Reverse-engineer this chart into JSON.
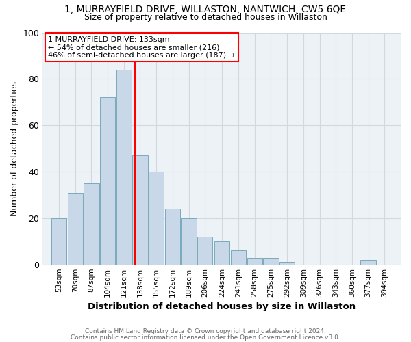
{
  "title": "1, MURRAYFIELD DRIVE, WILLASTON, NANTWICH, CW5 6QE",
  "subtitle": "Size of property relative to detached houses in Willaston",
  "xlabel": "Distribution of detached houses by size in Willaston",
  "ylabel": "Number of detached properties",
  "footnote1": "Contains HM Land Registry data © Crown copyright and database right 2024.",
  "footnote2": "Contains public sector information licensed under the Open Government Licence v3.0.",
  "bin_labels": [
    "53sqm",
    "70sqm",
    "87sqm",
    "104sqm",
    "121sqm",
    "138sqm",
    "155sqm",
    "172sqm",
    "189sqm",
    "206sqm",
    "224sqm",
    "241sqm",
    "258sqm",
    "275sqm",
    "292sqm",
    "309sqm",
    "326sqm",
    "343sqm",
    "360sqm",
    "377sqm",
    "394sqm"
  ],
  "bin_edges": [
    53,
    70,
    87,
    104,
    121,
    138,
    155,
    172,
    189,
    206,
    224,
    241,
    258,
    275,
    292,
    309,
    326,
    343,
    360,
    377,
    394
  ],
  "bar_heights": [
    20,
    31,
    35,
    72,
    84,
    47,
    40,
    24,
    20,
    12,
    10,
    6,
    3,
    3,
    1,
    0,
    0,
    0,
    0,
    2,
    0
  ],
  "bar_color": "#c8d8e8",
  "bar_edge_color": "#7aaabb",
  "reference_line_x": 133,
  "ylim": [
    0,
    100
  ],
  "annotation_text": "1 MURRAYFIELD DRIVE: 133sqm\n← 54% of detached houses are smaller (216)\n46% of semi-detached houses are larger (187) →",
  "annotation_box_color": "white",
  "annotation_box_edge_color": "red",
  "grid_color": "#d0d8e0",
  "background_color": "#edf2f7"
}
